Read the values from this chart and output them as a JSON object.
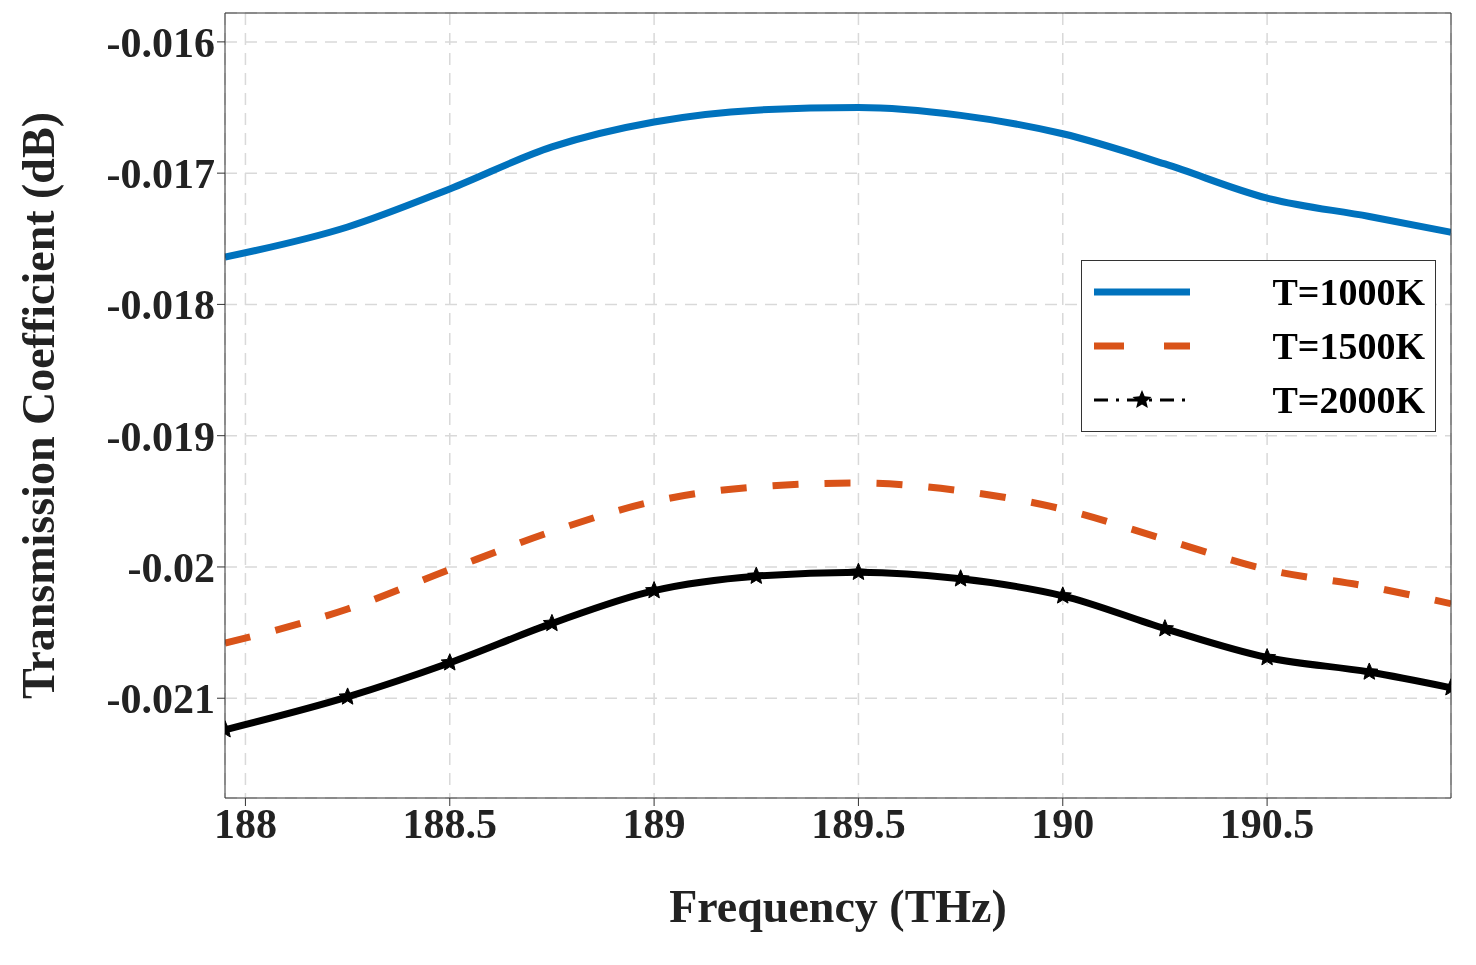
{
  "chart_data": {
    "type": "line",
    "xlabel": "Frequency (THz)",
    "ylabel": "Transmission Coefficient (dB)",
    "x": [
      187.95,
      188.25,
      188.5,
      188.75,
      189,
      189.25,
      189.5,
      189.75,
      190,
      190.25,
      190.5,
      190.75,
      190.95
    ],
    "series": [
      {
        "name": "T=1000K",
        "color": "#0072bd",
        "line_style": "solid",
        "marker": "none",
        "values": [
          -0.01764,
          -0.01741,
          -0.01712,
          -0.0168,
          -0.01661,
          -0.01652,
          -0.0165,
          -0.01656,
          -0.0167,
          -0.01693,
          -0.01719,
          -0.01733,
          -0.01745
        ]
      },
      {
        "name": "T=1500K",
        "color": "#d95319",
        "line_style": "dashed",
        "marker": "none",
        "values": [
          -0.02058,
          -0.02032,
          -0.02002,
          -0.01973,
          -0.0195,
          -0.01939,
          -0.01936,
          -0.01942,
          -0.01956,
          -0.01979,
          -0.02002,
          -0.02015,
          -0.02028
        ]
      },
      {
        "name": "T=2000K",
        "color": "#000000",
        "line_style": "solid",
        "marker": "star",
        "values": [
          -0.02124,
          -0.02099,
          -0.02073,
          -0.02043,
          -0.02018,
          -0.02007,
          -0.02004,
          -0.02009,
          -0.02022,
          -0.02047,
          -0.02069,
          -0.0208,
          -0.02092
        ]
      }
    ],
    "xlim": [
      187.95,
      190.95
    ],
    "ylim": [
      -0.02176,
      -0.01578
    ],
    "xticks": [
      188,
      188.5,
      189,
      189.5,
      190,
      190.5
    ],
    "yticks": [
      -0.021,
      -0.02,
      -0.019,
      -0.018,
      -0.017,
      -0.016
    ],
    "grid": true,
    "legend": "top right"
  }
}
